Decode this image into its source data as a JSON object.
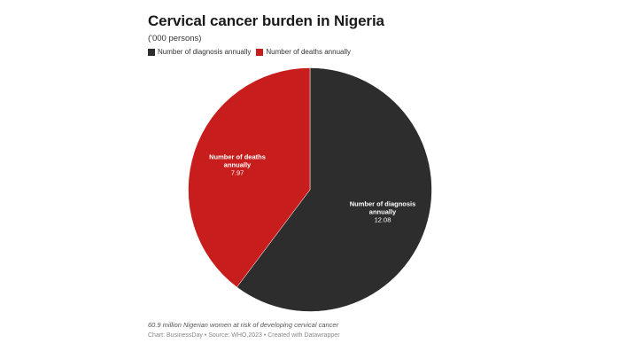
{
  "header": {
    "title": "Cervical cancer burden in Nigeria",
    "subtitle": "('000 persons)"
  },
  "legend": {
    "items": [
      {
        "label": "Number of diagnosis annually",
        "color": "#2d2d2d"
      },
      {
        "label": "Number of deaths annually",
        "color": "#c71e1d"
      }
    ]
  },
  "slices": [
    {
      "label_line1": "Number of diagnosis",
      "label_line2": "annually",
      "value_text": "12.08",
      "color": "#2d2d2d"
    },
    {
      "label_line1": "Number of deaths",
      "label_line2": "annually",
      "value_text": "7.97",
      "color": "#c71e1d"
    }
  ],
  "notes": "60.9 million Nigerian women at risk of developing cervical cancer",
  "footer": "Chart: BusinessDay • Source: WHO,2023 • Created with Datawrapper",
  "chart_data": {
    "type": "pie",
    "title": "Cervical cancer burden in Nigeria",
    "subtitle": "('000 persons)",
    "categories": [
      "Number of diagnosis annually",
      "Number of deaths annually"
    ],
    "values": [
      12.08,
      7.97
    ],
    "colors": [
      "#2d2d2d",
      "#c71e1d"
    ],
    "legend_position": "top",
    "start_angle": "12 o'clock, clockwise",
    "annotations": [
      "60.9 million Nigerian women at risk of developing cervical cancer"
    ],
    "source": "Chart: BusinessDay • Source: WHO,2023 • Created with Datawrapper"
  }
}
